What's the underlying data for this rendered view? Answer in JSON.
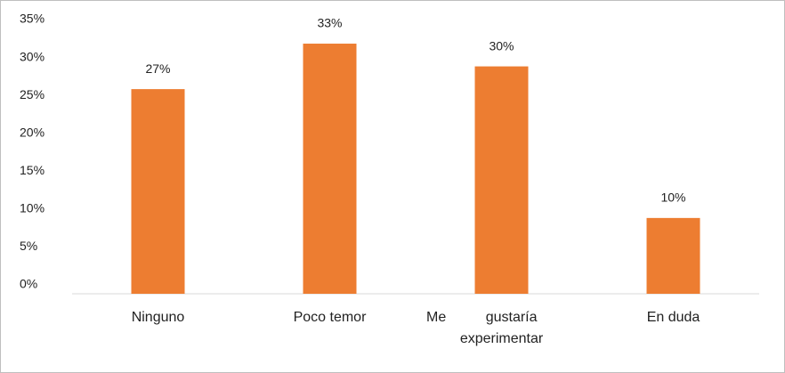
{
  "chart_data": {
    "type": "bar",
    "categories": [
      "Ninguno",
      "Poco temor",
      "Me gustaría experimentar",
      "En duda"
    ],
    "values": [
      27,
      33,
      30,
      10
    ],
    "value_labels": [
      "27%",
      "33%",
      "30%",
      "10%"
    ],
    "color": "#ed7d31",
    "ylim": [
      0,
      35
    ],
    "yticks": [
      {
        "value": 0,
        "label": "0%"
      },
      {
        "value": 5,
        "label": "5%"
      },
      {
        "value": 10,
        "label": "10%"
      },
      {
        "value": 15,
        "label": "15%"
      },
      {
        "value": 20,
        "label": "20%"
      },
      {
        "value": 25,
        "label": "25%"
      },
      {
        "value": 30,
        "label": "30%"
      },
      {
        "value": 35,
        "label": "35%"
      }
    ],
    "grid": false
  }
}
